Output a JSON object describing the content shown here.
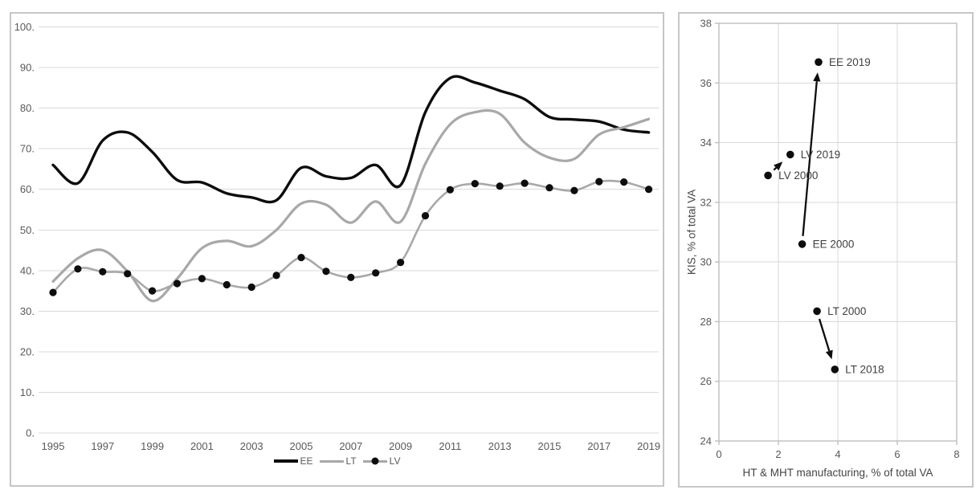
{
  "page": {
    "background": "#ffffff"
  },
  "colors": {
    "series_dark": "#0d0d0d",
    "series_gray": "#a8a8a8",
    "grid": "#d9d9d9",
    "plot_border": "#bfbfbf",
    "panel_border": "#c6c6c6",
    "tick_text": "#595959",
    "label_text": "#404040"
  },
  "chart_data": [
    {
      "id": "services-share-by-year",
      "type": "line",
      "smooth": true,
      "title": "",
      "xlabel": "",
      "ylabel": "",
      "ylim": [
        0,
        100
      ],
      "grid": "horizontal",
      "ytick_labels": [
        "0.",
        "10.",
        "20.",
        "30.",
        "40.",
        "50.",
        "60.",
        "70.",
        "80.",
        "90.",
        "100."
      ],
      "xtick_labels": [
        1995,
        1997,
        1999,
        2001,
        2003,
        2005,
        2007,
        2009,
        2011,
        2013,
        2015,
        2017,
        2019
      ],
      "x": [
        1995,
        1996,
        1997,
        1998,
        1999,
        2000,
        2001,
        2002,
        2003,
        2004,
        2005,
        2006,
        2007,
        2008,
        2009,
        2010,
        2011,
        2012,
        2013,
        2014,
        2015,
        2016,
        2017,
        2018,
        2019
      ],
      "series": [
        {
          "name": "EE",
          "color": "#0d0d0d",
          "width": 3.4,
          "marker": false,
          "values": [
            66,
            61.5,
            72,
            74,
            69.2,
            62.3,
            61.7,
            59,
            58,
            57.3,
            65.3,
            63.2,
            62.8,
            66,
            61,
            79,
            87.4,
            86.3,
            84.3,
            82.2,
            77.8,
            77.2,
            76.7,
            74.7,
            74
          ]
        },
        {
          "name": "LT",
          "color": "#a8a8a8",
          "width": 3.2,
          "marker": false,
          "values": [
            37.3,
            43,
            45,
            39.8,
            32.5,
            38,
            45.5,
            47.3,
            46,
            50,
            56.5,
            56.2,
            51.8,
            57,
            52,
            66.3,
            76,
            79,
            78.6,
            71.5,
            67.8,
            67.5,
            73.5,
            75.3,
            77.3
          ]
        },
        {
          "name": "LV",
          "color": "#a8a8a8",
          "width": 2.6,
          "marker": true,
          "marker_color": "#0d0d0d",
          "values": [
            34.6,
            40.4,
            39.7,
            39.2,
            35,
            36.8,
            38,
            36.5,
            35.9,
            38.8,
            43.2,
            39.8,
            38.3,
            39.4,
            42,
            53.5,
            59.9,
            61.4,
            60.8,
            61.5,
            60.4,
            59.7,
            61.9,
            61.8,
            60
          ]
        }
      ],
      "legend": {
        "position": "bottom",
        "items": [
          "EE",
          "LT",
          "LV"
        ]
      }
    },
    {
      "id": "kis-vs-manufacturing",
      "type": "scatter",
      "xlabel": "HT & MHT manufacturing, % of total VA",
      "ylabel": "KIS, % of total VA",
      "xlim": [
        0,
        8
      ],
      "ylim": [
        24,
        38
      ],
      "xticks": [
        0,
        2,
        4,
        6,
        8
      ],
      "yticks": [
        24,
        26,
        28,
        30,
        32,
        34,
        36,
        38
      ],
      "grid": "both",
      "point_color": "#0d0d0d",
      "points": [
        {
          "label": "EE 2019",
          "x": 3.35,
          "y": 36.7
        },
        {
          "label": "LV 2019",
          "x": 2.4,
          "y": 33.6
        },
        {
          "label": "LV 2000",
          "x": 1.65,
          "y": 32.9
        },
        {
          "label": "EE 2000",
          "x": 2.8,
          "y": 30.6
        },
        {
          "label": "LT 2000",
          "x": 3.3,
          "y": 28.35
        },
        {
          "label": "LT 2018",
          "x": 3.9,
          "y": 26.4
        }
      ],
      "arrows": [
        {
          "from": "LV 2000",
          "to": "LV 2019"
        },
        {
          "from": "EE 2000",
          "to": "EE 2019"
        },
        {
          "from": "LT 2000",
          "to": "LT 2018"
        }
      ]
    }
  ]
}
